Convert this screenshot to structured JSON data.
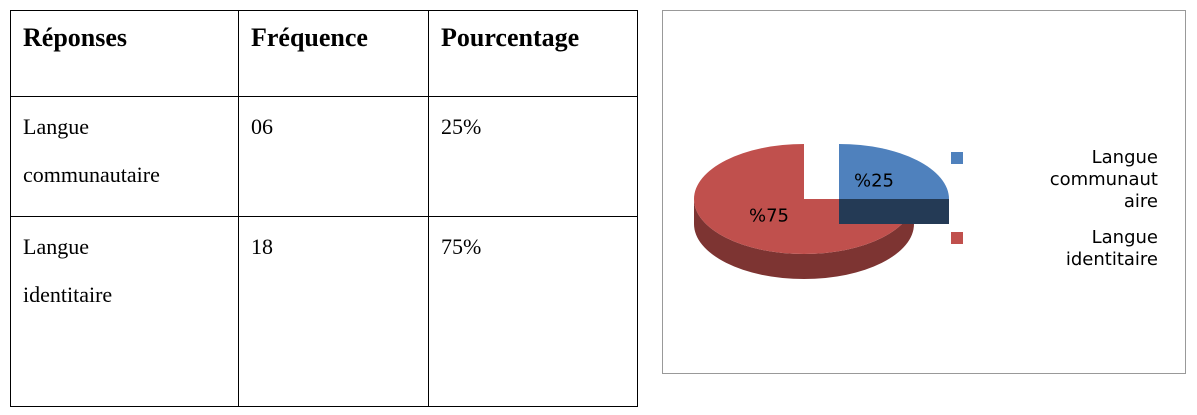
{
  "table": {
    "header": [
      "Réponses",
      "Fréquence",
      "Pourcentage"
    ],
    "rows": [
      [
        "Langue communautaire",
        "06",
        "25%"
      ],
      [
        "Langue identitaire",
        "18",
        "75%"
      ]
    ]
  },
  "chart_data": {
    "type": "pie",
    "categories": [
      "Langue communautaire",
      "Langue identitaire"
    ],
    "values": [
      25,
      75
    ],
    "value_labels": [
      "%25",
      "%75"
    ],
    "colors": [
      "#4f81bd",
      "#c0504d"
    ],
    "legend": "right"
  }
}
